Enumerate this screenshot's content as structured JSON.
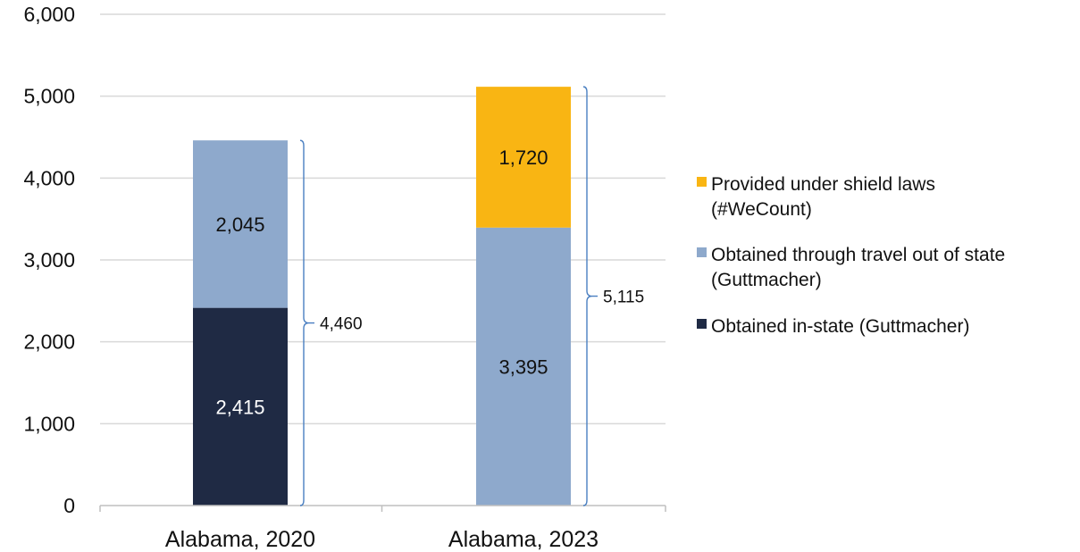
{
  "chart_data": {
    "type": "bar",
    "stacked": true,
    "title": "",
    "xlabel": "",
    "ylabel": "",
    "ylim": [
      0,
      6000
    ],
    "yticks": [
      0,
      1000,
      2000,
      3000,
      4000,
      5000,
      6000
    ],
    "ytick_labels": [
      "0",
      "1,000",
      "2,000",
      "3,000",
      "4,000",
      "5,000",
      "6,000"
    ],
    "grid": true,
    "legend_position": "right",
    "categories": [
      "Alabama, 2020",
      "Alabama, 2023"
    ],
    "series": [
      {
        "name": "Obtained in-state (Guttmacher)",
        "legend_lines": [
          "Obtained in-state (Guttmacher)"
        ],
        "color": "#1f2a44",
        "label_color": "#ffffff",
        "values": [
          2415,
          0
        ],
        "labels": [
          "2,415",
          ""
        ]
      },
      {
        "name": "Obtained through travel out of state (Guttmacher)",
        "legend_lines": [
          "Obtained through travel out of state",
          "(Guttmacher)"
        ],
        "color": "#8ea9cc",
        "label_color": "#111111",
        "values": [
          2045,
          3395
        ],
        "labels": [
          "2,045",
          "3,395"
        ]
      },
      {
        "name": "Provided under shield laws (#WeCount)",
        "legend_lines": [
          "Provided under shield laws",
          "(#WeCount)"
        ],
        "color": "#f9b513",
        "label_color": "#111111",
        "values": [
          0,
          1720
        ],
        "labels": [
          "",
          "1,720"
        ]
      }
    ],
    "totals": [
      4460,
      5115
    ],
    "total_labels": [
      "4,460",
      "5,115"
    ],
    "bracket_color": "#4a7fc1"
  }
}
